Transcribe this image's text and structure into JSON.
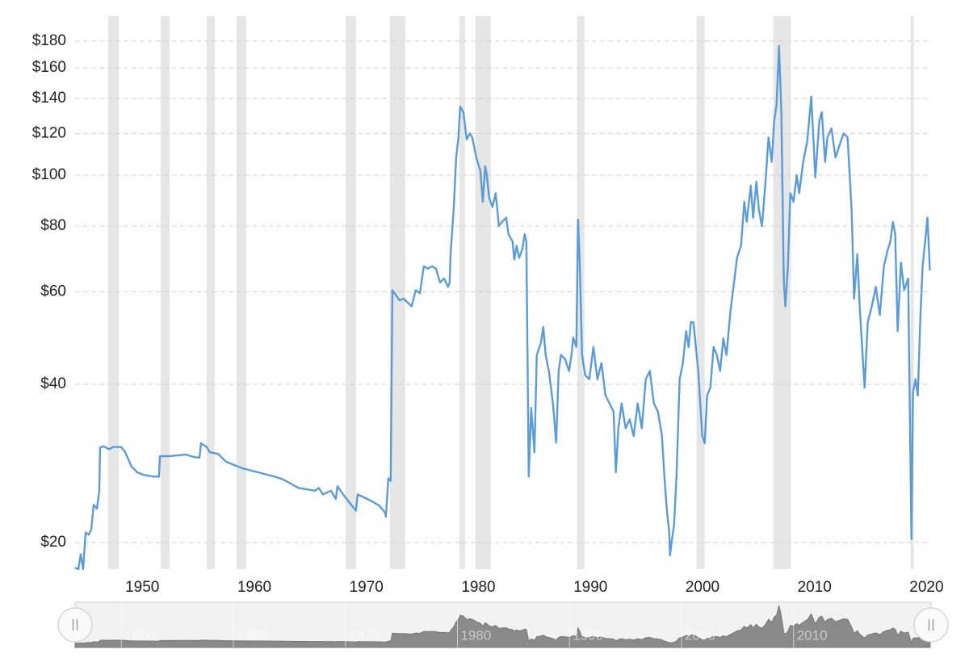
{
  "chart_data": {
    "type": "line",
    "log_scale": true,
    "grid": true,
    "color": "#5b9bd6",
    "band_color": "#e6e6e6",
    "xlim": [
      1944,
      2020.4
    ],
    "ylim": [
      17.8,
      193.7
    ],
    "xticks": [
      1950,
      1960,
      1970,
      1980,
      1990,
      2000,
      2010,
      2020
    ],
    "yticks": [
      {
        "value": 20,
        "label": "$20"
      },
      {
        "value": 40,
        "label": "$40"
      },
      {
        "value": 60,
        "label": "$60"
      },
      {
        "value": 80,
        "label": "$80"
      },
      {
        "value": 100,
        "label": "$100"
      },
      {
        "value": 120,
        "label": "$120"
      },
      {
        "value": 140,
        "label": "$140"
      },
      {
        "value": 160,
        "label": "$160"
      },
      {
        "value": 180,
        "label": "$180"
      }
    ],
    "shaded_periods": [
      [
        1946.95,
        1947.89
      ],
      [
        1951.64,
        1952.43
      ],
      [
        1955.74,
        1956.46
      ],
      [
        1958.41,
        1959.27
      ],
      [
        1968.14,
        1969.07
      ],
      [
        1972.1,
        1973.47
      ],
      [
        1978.29,
        1978.8
      ],
      [
        1979.73,
        1981.1
      ],
      [
        1988.81,
        1989.46
      ],
      [
        1999.47,
        2000.2
      ],
      [
        2006.32,
        2007.9
      ],
      [
        2018.57,
        2018.86
      ]
    ],
    "x": [
      1944.0,
      1944.29,
      1944.5,
      1944.72,
      1944.94,
      1945.22,
      1945.44,
      1945.66,
      1945.95,
      1946.16,
      1946.23,
      1946.52,
      1947.03,
      1947.39,
      1948.11,
      1948.47,
      1949.04,
      1949.55,
      1950.12,
      1950.99,
      1951.49,
      1951.57,
      1952.43,
      1953.87,
      1954.59,
      1955.1,
      1955.24,
      1955.74,
      1956.03,
      1956.75,
      1957.47,
      1958.91,
      1960.36,
      1961.8,
      1962.52,
      1963.96,
      1965.4,
      1965.76,
      1966.12,
      1966.84,
      1967.27,
      1967.42,
      1967.92,
      1968.64,
      1969.07,
      1969.22,
      1970.44,
      1971.16,
      1971.67,
      1971.74,
      1971.96,
      1972.17,
      1972.32,
      1972.96,
      1973.32,
      1974.04,
      1974.4,
      1974.77,
      1975.13,
      1975.49,
      1975.85,
      1976.21,
      1976.57,
      1976.93,
      1977.29,
      1977.43,
      1977.51,
      1977.79,
      1978.01,
      1978.22,
      1978.37,
      1978.66,
      1978.95,
      1979.23,
      1979.45,
      1979.81,
      1980.17,
      1980.39,
      1980.6,
      1980.75,
      1980.96,
      1981.25,
      1981.54,
      1981.83,
      1982.11,
      1982.48,
      1982.69,
      1983.05,
      1983.2,
      1983.41,
      1983.63,
      1983.92,
      1984.13,
      1984.28,
      1984.49,
      1984.71,
      1985.0,
      1985.21,
      1985.57,
      1985.79,
      1986.0,
      1986.29,
      1986.65,
      1986.94,
      1987.16,
      1987.37,
      1987.73,
      1988.09,
      1988.31,
      1988.46,
      1988.74,
      1988.89,
      1989.03,
      1989.25,
      1989.54,
      1989.9,
      1990.26,
      1990.62,
      1990.98,
      1991.34,
      1991.7,
      1992.06,
      1992.27,
      1992.49,
      1992.78,
      1993.14,
      1993.5,
      1993.86,
      1994.22,
      1994.58,
      1994.94,
      1995.3,
      1995.66,
      1996.02,
      1996.38,
      1996.6,
      1996.81,
      1997.03,
      1997.1,
      1997.25,
      1997.46,
      1997.68,
      1997.96,
      1998.25,
      1998.54,
      1998.76,
      1998.97,
      1999.19,
      1999.41,
      1999.62,
      1999.98,
      2000.2,
      2000.41,
      2000.7,
      2000.99,
      2001.28,
      2001.57,
      2001.86,
      2002.14,
      2002.5,
      2002.86,
      2003.08,
      2003.44,
      2003.73,
      2003.95,
      2004.31,
      2004.52,
      2004.81,
      2005.03,
      2005.31,
      2005.6,
      2005.89,
      2006.18,
      2006.4,
      2006.61,
      2006.83,
      2007.04,
      2007.26,
      2007.4,
      2007.62,
      2007.84,
      2008.12,
      2008.41,
      2008.63,
      2008.99,
      2009.35,
      2009.71,
      2010.07,
      2010.43,
      2010.65,
      2010.94,
      2011.15,
      2011.51,
      2011.87,
      2012.23,
      2012.59,
      2012.95,
      2013.31,
      2013.53,
      2013.82,
      2014.03,
      2014.25,
      2014.47,
      2014.75,
      2015.11,
      2015.47,
      2015.83,
      2016.19,
      2016.55,
      2016.77,
      2016.99,
      2017.2,
      2017.42,
      2017.71,
      2018.0,
      2018.36,
      2018.65,
      2018.79,
      2019.01,
      2019.22,
      2019.43,
      2019.65,
      2019.87,
      2020.08,
      2020.3
    ],
    "values": [
      17.9,
      17.8,
      19.0,
      17.8,
      20.9,
      20.7,
      21.2,
      23.6,
      23.2,
      25.1,
      30.3,
      30.5,
      30.1,
      30.4,
      30.4,
      29.7,
      27.9,
      27.2,
      26.9,
      26.7,
      26.7,
      29.2,
      29.2,
      29.4,
      29.1,
      29.0,
      30.9,
      30.4,
      29.7,
      29.5,
      28.5,
      27.7,
      27.2,
      26.7,
      26.4,
      25.4,
      25.1,
      25.4,
      24.7,
      25.1,
      24.2,
      25.6,
      24.7,
      23.6,
      23.0,
      24.7,
      24.0,
      23.5,
      22.8,
      22.4,
      26.5,
      26.2,
      60.4,
      57.8,
      58.2,
      56.3,
      60.4,
      59.6,
      67.1,
      66.4,
      67.1,
      66.4,
      62.5,
      63.6,
      61.3,
      62.5,
      70.4,
      86.0,
      108,
      118,
      135,
      131.7,
      117,
      120,
      118,
      108,
      102,
      89.0,
      104,
      100,
      90.5,
      87.0,
      92.4,
      80.0,
      81.5,
      83.0,
      77.2,
      74.7,
      69.1,
      73.4,
      69.6,
      72.3,
      77.2,
      74.7,
      26.7,
      36.1,
      29.7,
      45.5,
      47.9,
      51.4,
      45.5,
      42.4,
      36.8,
      31.0,
      42.4,
      45.5,
      44.7,
      42.4,
      45.5,
      49.1,
      47.1,
      82.3,
      69.6,
      45.5,
      41.6,
      40.9,
      47.1,
      40.9,
      43.9,
      38.1,
      36.8,
      35.5,
      27.2,
      33.0,
      36.8,
      33.0,
      34.3,
      31.9,
      36.8,
      33.0,
      40.9,
      42.4,
      36.8,
      35.5,
      31.9,
      26.7,
      23.2,
      20.9,
      18.9,
      20.1,
      21.6,
      26.7,
      40.9,
      43.9,
      50.5,
      47.1,
      52.5,
      52.5,
      47.1,
      42.4,
      31.9,
      30.9,
      38.1,
      39.4,
      47.1,
      45.5,
      42.4,
      48.9,
      45.5,
      55.2,
      63.6,
      69.6,
      73.4,
      89.0,
      81.5,
      95.5,
      83.0,
      97.2,
      86.0,
      80.0,
      95.5,
      118,
      106,
      127,
      136,
      176,
      131.7,
      62.5,
      56.3,
      67.1,
      92.4,
      89.0,
      100,
      92.4,
      106,
      116,
      141,
      99,
      127,
      131.7,
      106,
      118,
      122.7,
      108,
      114,
      120,
      118,
      86.0,
      58.2,
      70.7,
      56.3,
      47.1,
      39.4,
      52.5,
      56.3,
      61.3,
      54.2,
      67.1,
      72.3,
      74.7,
      81.5,
      77.2,
      50.5,
      68.2,
      60.4,
      63.6,
      20.3,
      38.7,
      40.9,
      38.1,
      52.5,
      67.1,
      74.7,
      83.0,
      65.9
    ]
  }
}
